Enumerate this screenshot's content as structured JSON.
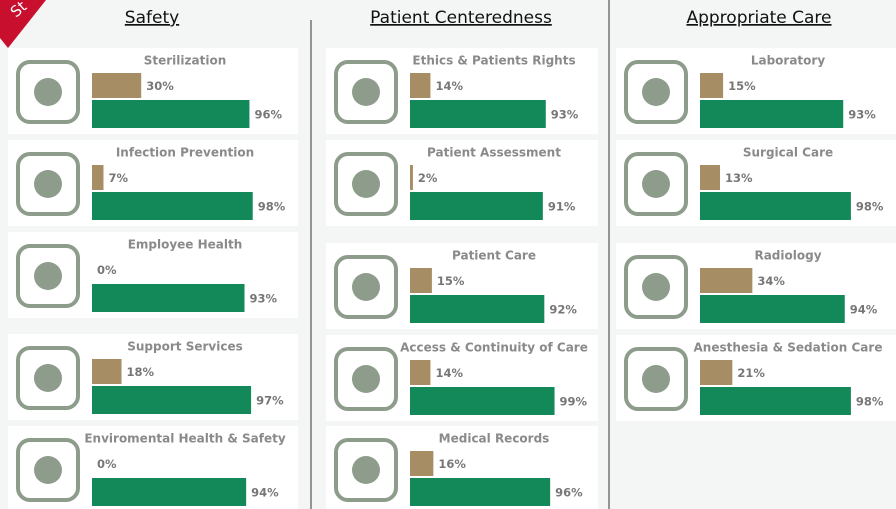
{
  "ribbon": "St",
  "colors": [
    "#a68d64",
    "#13895a"
  ],
  "columns": [
    {
      "title": "Safety",
      "cards": [
        {
          "title": "Sterilization",
          "values": [
            30,
            96
          ],
          "value_labels": [
            "30%",
            "96%"
          ]
        },
        {
          "title": "Infection Prevention",
          "values": [
            7,
            98
          ],
          "value_labels": [
            "7%",
            "98%"
          ]
        },
        {
          "title": "Employee Health",
          "values": [
            0,
            93
          ],
          "value_labels": [
            "0%",
            "93%"
          ]
        },
        {
          "title": "Support Services",
          "values": [
            18,
            97
          ],
          "value_labels": [
            "18%",
            "97%"
          ]
        },
        {
          "title": "Enviromental Health & Safety",
          "values": [
            0,
            94
          ],
          "value_labels": [
            "0%",
            "94%"
          ]
        }
      ]
    },
    {
      "title": "Patient Centeredness",
      "cards": [
        {
          "title": "Ethics & Patients Rights",
          "values": [
            14,
            93
          ],
          "value_labels": [
            "14%",
            "93%"
          ]
        },
        {
          "title": "Patient Assessment",
          "values": [
            2,
            91
          ],
          "value_labels": [
            "2%",
            "91%"
          ]
        },
        {
          "title": "Patient Care",
          "values": [
            15,
            92
          ],
          "value_labels": [
            "15%",
            "92%"
          ]
        },
        {
          "title": "Access & Continuity of Care",
          "values": [
            14,
            99
          ],
          "value_labels": [
            "14%",
            "99%"
          ]
        },
        {
          "title": "Medical Records",
          "values": [
            16,
            96
          ],
          "value_labels": [
            "16%",
            "96%"
          ]
        }
      ]
    },
    {
      "title": "Appropriate Care",
      "cards": [
        {
          "title": "Laboratory",
          "values": [
            15,
            93
          ],
          "value_labels": [
            "15%",
            "93%"
          ]
        },
        {
          "title": "Surgical Care",
          "values": [
            13,
            98
          ],
          "value_labels": [
            "13%",
            "98%"
          ]
        },
        {
          "title": "Radiology",
          "values": [
            34,
            94
          ],
          "value_labels": [
            "34%",
            "94%"
          ]
        },
        {
          "title": "Anesthesia & Sedation Care",
          "values": [
            21,
            98
          ],
          "value_labels": [
            "21%",
            "98%"
          ]
        }
      ]
    }
  ]
}
